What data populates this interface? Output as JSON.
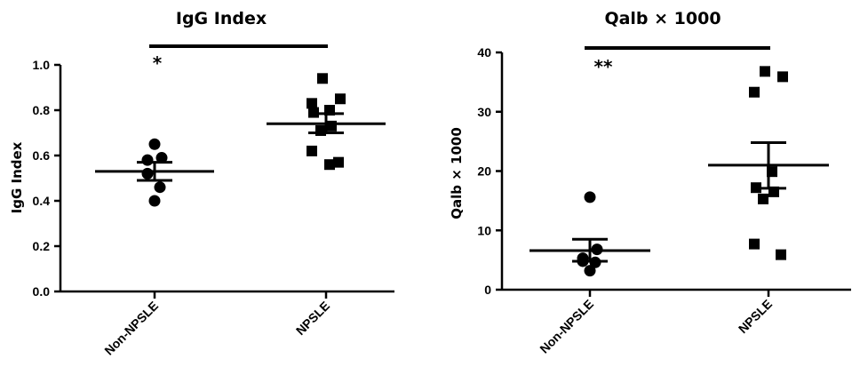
{
  "chart_data": [
    {
      "type": "scatter",
      "title": "IgG Index",
      "xlabel": "",
      "ylabel": "IgG Index",
      "ylim": [
        0,
        1.0
      ],
      "yticks": [
        "0.0",
        "0.2",
        "0.4",
        "0.6",
        "0.8",
        "1.0"
      ],
      "categories": [
        "Non-NPSLE",
        "NPSLE"
      ],
      "series": [
        {
          "category": "Non-NPSLE",
          "marker": "circle",
          "values": [
            0.65,
            0.59,
            0.58,
            0.52,
            0.46,
            0.4
          ],
          "mean": 0.53,
          "sem": [
            0.49,
            0.57
          ]
        },
        {
          "category": "NPSLE",
          "marker": "square",
          "values": [
            0.94,
            0.85,
            0.83,
            0.8,
            0.79,
            0.73,
            0.71,
            0.62,
            0.57,
            0.56
          ],
          "mean": 0.74,
          "sem": [
            0.7,
            0.785
          ]
        }
      ],
      "significance": "*",
      "grid": false
    },
    {
      "type": "scatter",
      "title": "Qalb × 1000",
      "xlabel": "",
      "ylabel": "Qalb × 1000",
      "ylim": [
        0,
        40
      ],
      "yticks": [
        "0",
        "10",
        "20",
        "30",
        "40"
      ],
      "categories": [
        "Non-NPSLE",
        "NPSLE"
      ],
      "series": [
        {
          "category": "Non-NPSLE",
          "marker": "circle",
          "values": [
            15.6,
            6.8,
            5.3,
            4.8,
            4.6,
            3.2
          ],
          "mean": 6.6,
          "sem": [
            4.8,
            8.5
          ]
        },
        {
          "category": "NPSLE",
          "marker": "square",
          "values": [
            36.8,
            35.9,
            33.3,
            19.9,
            17.2,
            16.5,
            15.3,
            7.7,
            5.9
          ],
          "mean": 21.0,
          "sem": [
            17.1,
            24.8
          ]
        }
      ],
      "significance": "**",
      "grid": false
    }
  ]
}
